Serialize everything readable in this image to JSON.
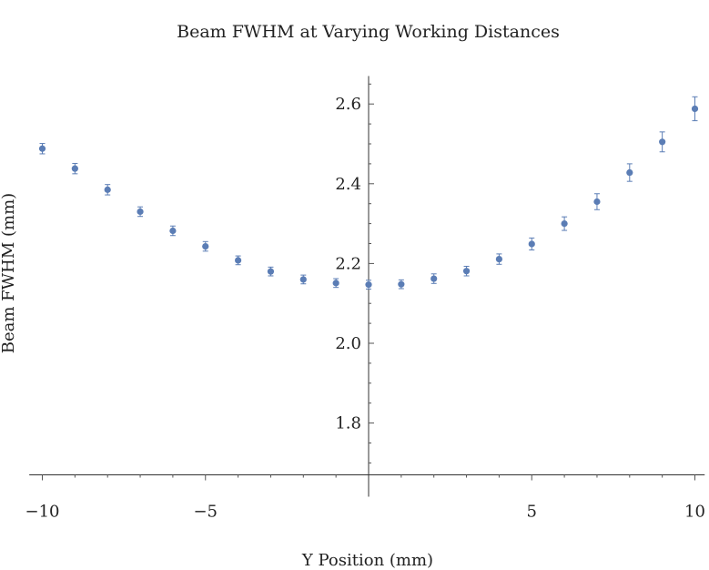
{
  "chart_data": {
    "type": "scatter",
    "title": "Beam FWHM at Varying Working Distances",
    "xlabel": "Y Position (mm)",
    "ylabel": "Beam FWHM (mm)",
    "xlim": [
      -10.4,
      10.3
    ],
    "ylim": [
      1.67,
      2.67
    ],
    "x_ticks": [
      -10,
      -5,
      5,
      10
    ],
    "x_tick_labels": [
      "−10",
      "−5",
      "5",
      "10"
    ],
    "y_ticks": [
      1.8,
      2.0,
      2.2,
      2.4,
      2.6
    ],
    "y_tick_labels": [
      "1.8",
      "2.0",
      "2.2",
      "2.4",
      "2.6"
    ],
    "grid": false,
    "marker_color": "#5b7db5",
    "points": [
      {
        "x": -10,
        "y": 2.488,
        "err": 0.013
      },
      {
        "x": -9,
        "y": 2.438,
        "err": 0.013
      },
      {
        "x": -8,
        "y": 2.385,
        "err": 0.013
      },
      {
        "x": -7,
        "y": 2.33,
        "err": 0.012
      },
      {
        "x": -6,
        "y": 2.282,
        "err": 0.012
      },
      {
        "x": -5,
        "y": 2.243,
        "err": 0.012
      },
      {
        "x": -4,
        "y": 2.208,
        "err": 0.011
      },
      {
        "x": -3,
        "y": 2.18,
        "err": 0.011
      },
      {
        "x": -2,
        "y": 2.16,
        "err": 0.011
      },
      {
        "x": -1,
        "y": 2.151,
        "err": 0.011
      },
      {
        "x": 0,
        "y": 2.147,
        "err": 0.011
      },
      {
        "x": 1,
        "y": 2.148,
        "err": 0.011
      },
      {
        "x": 2,
        "y": 2.162,
        "err": 0.012
      },
      {
        "x": 3,
        "y": 2.181,
        "err": 0.012
      },
      {
        "x": 4,
        "y": 2.211,
        "err": 0.013
      },
      {
        "x": 5,
        "y": 2.249,
        "err": 0.015
      },
      {
        "x": 6,
        "y": 2.3,
        "err": 0.017
      },
      {
        "x": 7,
        "y": 2.355,
        "err": 0.02
      },
      {
        "x": 8,
        "y": 2.428,
        "err": 0.022
      },
      {
        "x": 9,
        "y": 2.505,
        "err": 0.025
      },
      {
        "x": 10,
        "y": 2.588,
        "err": 0.03
      }
    ]
  }
}
